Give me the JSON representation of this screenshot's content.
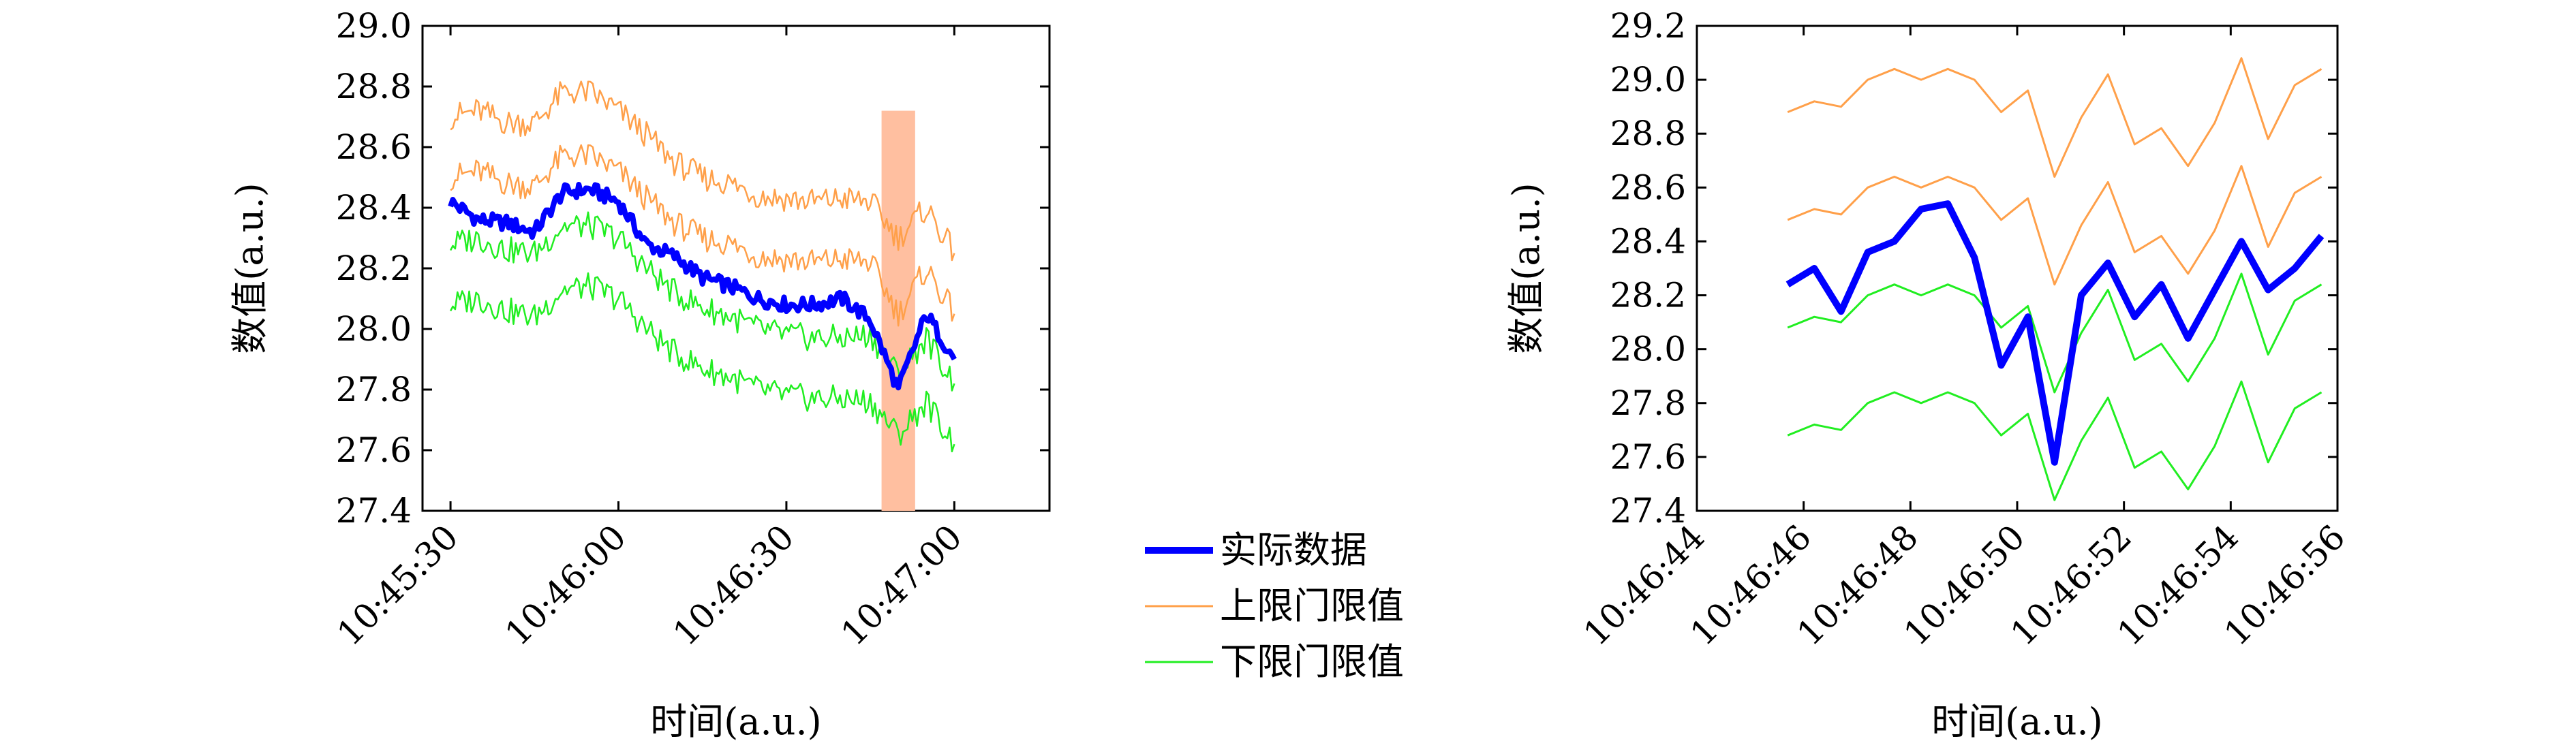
{
  "colors": {
    "actual": "#0000ff",
    "upper": "#ffa04a",
    "lower": "#21ee21",
    "highlight": "#ffbfa0"
  },
  "legend": {
    "items": [
      {
        "label": "实际数据",
        "series": "actual"
      },
      {
        "label": "上限门限值",
        "series": "upper"
      },
      {
        "label": "下限门限值",
        "series": "lower"
      }
    ]
  },
  "chart_data": [
    {
      "type": "line",
      "xlabel": "时间(a.u.)",
      "ylabel": "数值(a.u.)",
      "x_ticks": [
        "10:45:30",
        "10:46:00",
        "10:46:30",
        "10:47:00"
      ],
      "x_tick_seconds": [
        30,
        60,
        90,
        120
      ],
      "xlim_seconds": [
        25,
        137
      ],
      "ylim": [
        27.4,
        29.0
      ],
      "y_ticks": [
        "27.4",
        "27.6",
        "27.8",
        "28.0",
        "28.2",
        "28.4",
        "28.6",
        "28.8",
        "29.0"
      ],
      "x_range": [
        "10:45:30",
        "10:47:00"
      ],
      "highlight_span": [
        "10:46:47",
        "10:46:53"
      ],
      "series": [
        {
          "key": "actual",
          "name": "实际数据",
          "x": [
            "10:45:30",
            "10:45:35",
            "10:45:40",
            "10:45:45",
            "10:45:50",
            "10:45:55",
            "10:46:00",
            "10:46:05",
            "10:46:10",
            "10:46:15",
            "10:46:20",
            "10:46:25",
            "10:46:30",
            "10:46:35",
            "10:46:40",
            "10:46:45",
            "10:46:50",
            "10:46:55",
            "10:47:00"
          ],
          "values": [
            28.42,
            28.36,
            28.35,
            28.32,
            28.45,
            28.46,
            28.42,
            28.28,
            28.24,
            28.17,
            28.14,
            28.1,
            28.08,
            28.08,
            28.1,
            28.03,
            27.8,
            28.05,
            27.9
          ]
        },
        {
          "key": "upper",
          "name": "上限门限值",
          "x": [
            "10:45:30",
            "10:45:35",
            "10:45:40",
            "10:45:45",
            "10:45:50",
            "10:45:55",
            "10:46:00",
            "10:46:05",
            "10:46:10",
            "10:46:15",
            "10:46:20",
            "10:46:25",
            "10:46:30",
            "10:46:35",
            "10:46:40",
            "10:46:45",
            "10:46:50",
            "10:46:55",
            "10:47:00"
          ],
          "values": [
            28.7,
            28.72,
            28.68,
            28.68,
            28.78,
            28.78,
            28.72,
            28.64,
            28.55,
            28.5,
            28.48,
            28.44,
            28.43,
            28.42,
            28.43,
            28.42,
            28.3,
            28.4,
            28.25
          ]
        },
        {
          "key": "upper2",
          "name": "",
          "x": [
            "10:45:30",
            "10:45:35",
            "10:45:40",
            "10:45:45",
            "10:45:50",
            "10:45:55",
            "10:46:00",
            "10:46:05",
            "10:46:10",
            "10:46:15",
            "10:46:20",
            "10:46:25",
            "10:46:30",
            "10:46:35",
            "10:46:40",
            "10:46:45",
            "10:46:50",
            "10:46:55",
            "10:47:00"
          ],
          "values": [
            28.5,
            28.52,
            28.48,
            28.47,
            28.57,
            28.57,
            28.52,
            28.43,
            28.35,
            28.3,
            28.28,
            28.24,
            28.23,
            28.22,
            28.23,
            28.22,
            28.05,
            28.2,
            28.05
          ]
        },
        {
          "key": "lower2",
          "name": "",
          "x": [
            "10:45:30",
            "10:45:35",
            "10:45:40",
            "10:45:45",
            "10:45:50",
            "10:45:55",
            "10:46:00",
            "10:46:05",
            "10:46:10",
            "10:46:15",
            "10:46:20",
            "10:46:25",
            "10:46:30",
            "10:46:35",
            "10:46:40",
            "10:46:45",
            "10:46:50",
            "10:46:55",
            "10:47:00"
          ],
          "values": [
            28.28,
            28.3,
            28.26,
            28.25,
            28.34,
            28.34,
            28.3,
            28.2,
            28.12,
            28.07,
            28.04,
            28.0,
            27.98,
            27.97,
            27.97,
            27.98,
            27.85,
            27.97,
            27.82
          ]
        },
        {
          "key": "lower",
          "name": "下限门限值",
          "x": [
            "10:45:30",
            "10:45:35",
            "10:45:40",
            "10:45:45",
            "10:45:50",
            "10:45:55",
            "10:46:00",
            "10:46:05",
            "10:46:10",
            "10:46:15",
            "10:46:20",
            "10:46:25",
            "10:46:30",
            "10:46:35",
            "10:46:40",
            "10:46:45",
            "10:46:50",
            "10:46:55",
            "10:47:00"
          ],
          "values": [
            28.08,
            28.1,
            28.06,
            28.04,
            28.13,
            28.14,
            28.1,
            28.0,
            27.92,
            27.87,
            27.84,
            27.8,
            27.78,
            27.77,
            27.77,
            27.76,
            27.65,
            27.76,
            27.62
          ]
        }
      ]
    },
    {
      "type": "line",
      "xlabel": "时间(a.u.)",
      "ylabel": "数值(a.u.)",
      "x_ticks": [
        "10:46:44",
        "10:46:46",
        "10:46:48",
        "10:46:50",
        "10:46:52",
        "10:46:54",
        "10:46:56"
      ],
      "x_tick_seconds": [
        104,
        106,
        108,
        110,
        112,
        114,
        116
      ],
      "xlim_seconds": [
        104,
        116
      ],
      "ylim": [
        27.4,
        29.2
      ],
      "y_ticks": [
        "27.4",
        "27.6",
        "27.8",
        "28.0",
        "28.2",
        "28.4",
        "28.6",
        "28.8",
        "29.0",
        "29.2"
      ],
      "x": [
        "10:46:45.7",
        "10:46:46.2",
        "10:46:46.7",
        "10:46:47.2",
        "10:46:47.7",
        "10:46:48.2",
        "10:46:48.7",
        "10:46:49.2",
        "10:46:49.7",
        "10:46:50.2",
        "10:46:50.7",
        "10:46:51.2",
        "10:46:51.7",
        "10:46:52.2",
        "10:46:52.7",
        "10:46:53.2",
        "10:46:53.7",
        "10:46:54.2",
        "10:46:54.7",
        "10:46:55.2",
        "10:46:55.7"
      ],
      "series": [
        {
          "key": "upper",
          "name": "上限门限值",
          "values": [
            28.88,
            28.92,
            28.9,
            29.0,
            29.04,
            29.0,
            29.04,
            29.0,
            28.88,
            28.96,
            28.64,
            28.86,
            29.02,
            28.76,
            28.82,
            28.68,
            28.84,
            29.08,
            28.78,
            28.98,
            29.04
          ]
        },
        {
          "key": "upper2",
          "name": "",
          "values": [
            28.48,
            28.52,
            28.5,
            28.6,
            28.64,
            28.6,
            28.64,
            28.6,
            28.48,
            28.56,
            28.24,
            28.46,
            28.62,
            28.36,
            28.42,
            28.28,
            28.44,
            28.68,
            28.38,
            28.58,
            28.64
          ]
        },
        {
          "key": "actual",
          "name": "实际数据",
          "values": [
            28.24,
            28.3,
            28.14,
            28.36,
            28.4,
            28.52,
            28.54,
            28.34,
            27.94,
            28.12,
            27.58,
            28.2,
            28.32,
            28.12,
            28.24,
            28.04,
            28.22,
            28.4,
            28.22,
            28.3,
            28.42
          ]
        },
        {
          "key": "lower2",
          "name": "",
          "values": [
            28.08,
            28.12,
            28.1,
            28.2,
            28.24,
            28.2,
            28.24,
            28.2,
            28.08,
            28.16,
            27.84,
            28.06,
            28.22,
            27.96,
            28.02,
            27.88,
            28.04,
            28.28,
            27.98,
            28.18,
            28.24
          ]
        },
        {
          "key": "lower",
          "name": "下限门限值",
          "values": [
            27.68,
            27.72,
            27.7,
            27.8,
            27.84,
            27.8,
            27.84,
            27.8,
            27.68,
            27.76,
            27.44,
            27.66,
            27.82,
            27.56,
            27.62,
            27.48,
            27.64,
            27.88,
            27.58,
            27.78,
            27.84
          ]
        }
      ]
    }
  ]
}
